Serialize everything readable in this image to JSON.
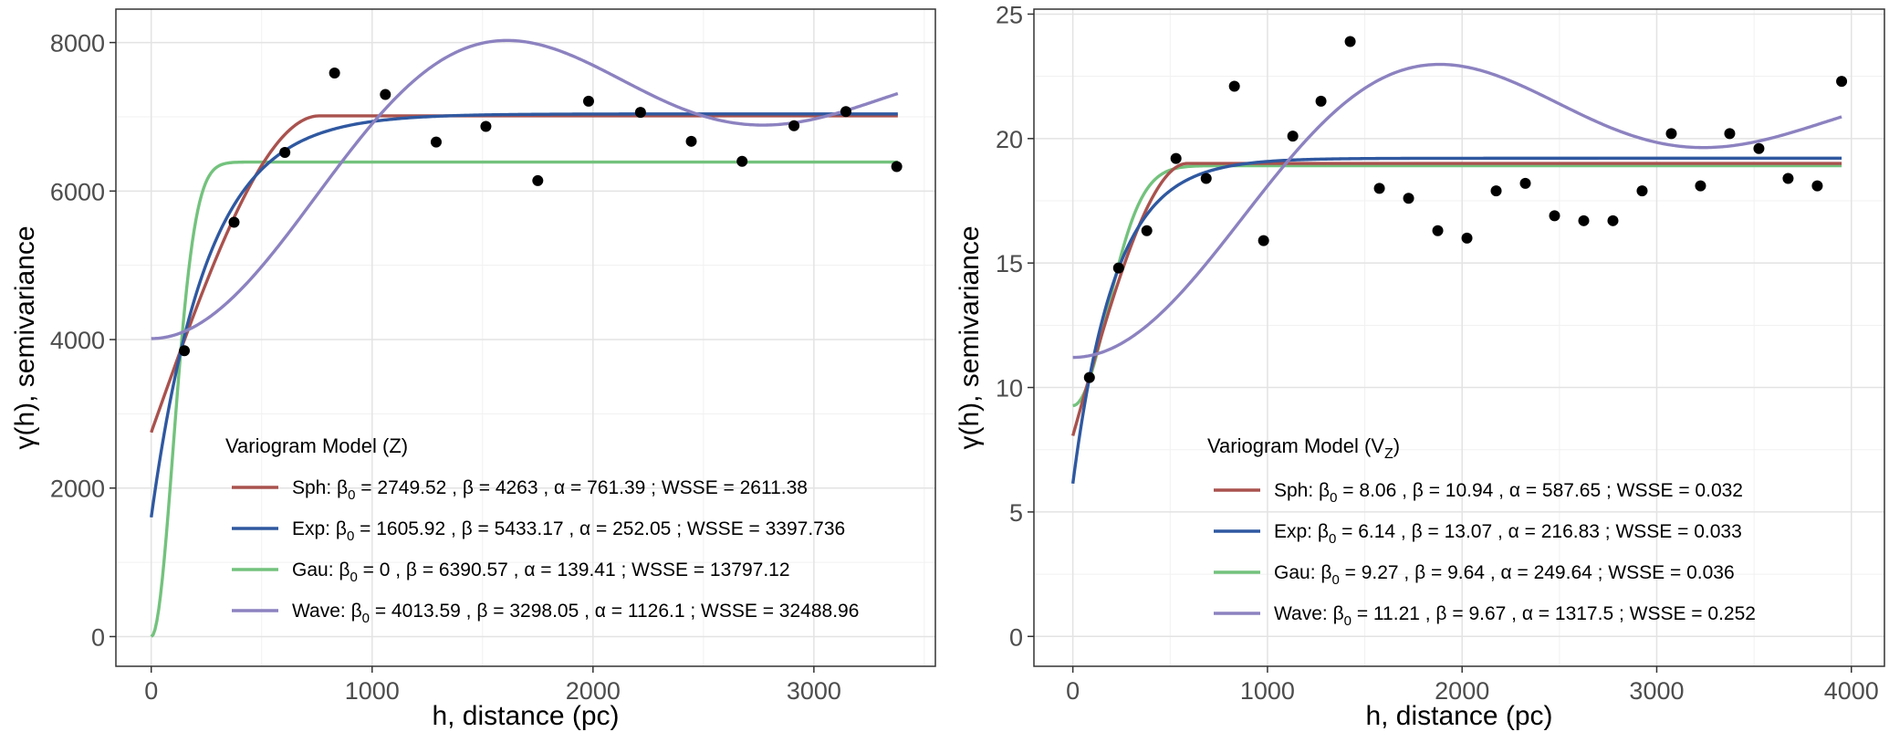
{
  "colors": {
    "sph": "#a9524e",
    "exp": "#2f58a0",
    "gau": "#73c27d",
    "wave": "#8c82c0",
    "points": "#000000",
    "grid_major": "#e3e3e3",
    "grid_minor": "#f1f1f1",
    "panel_border": "#333333"
  },
  "chart_data": [
    {
      "type": "scatter",
      "title": "",
      "xlabel": "h, distance (pc)",
      "ylabel": "γ(h), semivariance",
      "xlim": [
        -160,
        3550
      ],
      "ylim": [
        -400,
        8450
      ],
      "xticks": [
        0,
        1000,
        2000,
        3000
      ],
      "yticks": [
        0,
        2000,
        4000,
        6000,
        8000
      ],
      "xtick_labels": [
        "0",
        "1000",
        "2000",
        "3000"
      ],
      "ytick_labels": [
        "0",
        "2000",
        "4000",
        "6000",
        "8000"
      ],
      "legend": {
        "title": "Variogram Model (Z)",
        "placement": "bottom-center",
        "entries": [
          {
            "key": "sph",
            "model": "Sph:",
            "b0": "2749.52",
            "b": "4263",
            "a": "761.39",
            "wsse": "2611.38"
          },
          {
            "key": "exp",
            "model": "Exp:",
            "b0": "1605.92",
            "b": "5433.17",
            "a": "252.05",
            "wsse": "3397.736"
          },
          {
            "key": "gau",
            "model": "Gau:",
            "b0": "0",
            "b": "6390.57",
            "a": "139.41",
            "wsse": "13797.12"
          },
          {
            "key": "wave",
            "model": "Wave:",
            "b0": "4013.59",
            "b": "3298.05",
            "a": "1126.1",
            "wsse": "32488.96"
          }
        ]
      },
      "models": [
        {
          "key": "sph",
          "name": "Sph",
          "type": "spherical",
          "nugget": 2749.52,
          "psill": 4263,
          "range": 761.39
        },
        {
          "key": "exp",
          "name": "Exp",
          "type": "exponential",
          "nugget": 1605.92,
          "psill": 5433.17,
          "range": 252.05
        },
        {
          "key": "gau",
          "name": "Gau",
          "type": "gaussian",
          "nugget": 0,
          "psill": 6390.57,
          "range": 139.41
        },
        {
          "key": "wave",
          "name": "Wave",
          "type": "wave",
          "nugget": 4013.59,
          "psill": 3298.05,
          "range": 1126.1
        }
      ],
      "x_max": 3380,
      "points": {
        "x": [
          150,
          375,
          605,
          830,
          1060,
          1290,
          1515,
          1750,
          1980,
          2215,
          2445,
          2675,
          2910,
          3145,
          3375
        ],
        "y": [
          3850,
          5580,
          6520,
          7590,
          7300,
          6660,
          6870,
          6140,
          7210,
          7060,
          6670,
          6400,
          6880,
          7070,
          6330
        ]
      }
    },
    {
      "type": "scatter",
      "title": "",
      "xlabel": "h, distance (pc)",
      "ylabel": "γ(h), semivariance",
      "xlim": [
        -200,
        4170
      ],
      "ylim": [
        -1.2,
        25.2
      ],
      "xticks": [
        0,
        1000,
        2000,
        3000,
        4000
      ],
      "yticks": [
        0,
        5,
        10,
        15,
        20,
        25
      ],
      "xtick_labels": [
        "0",
        "1000",
        "2000",
        "3000",
        "4000"
      ],
      "ytick_labels": [
        "0",
        "5",
        "10",
        "15",
        "20",
        "25"
      ],
      "legend": {
        "title": "Variogram Model (V",
        "title_sub": "Z",
        "title_end": ")",
        "placement": "bottom-center",
        "entries": [
          {
            "key": "sph",
            "model": "Sph:",
            "b0": "8.06",
            "b": "10.94",
            "a": "587.65",
            "wsse": "0.032"
          },
          {
            "key": "exp",
            "model": "Exp:",
            "b0": "6.14",
            "b": "13.07",
            "a": "216.83",
            "wsse": "0.033"
          },
          {
            "key": "gau",
            "model": "Gau:",
            "b0": "9.27",
            "b": "9.64",
            "a": "249.64",
            "wsse": "0.036"
          },
          {
            "key": "wave",
            "model": "Wave:",
            "b0": "11.21",
            "b": "9.67",
            "a": "1317.5",
            "wsse": "0.252"
          }
        ]
      },
      "models": [
        {
          "key": "sph",
          "name": "Sph",
          "type": "spherical",
          "nugget": 8.06,
          "psill": 10.94,
          "range": 587.65
        },
        {
          "key": "exp",
          "name": "Exp",
          "type": "exponential",
          "nugget": 6.14,
          "psill": 13.07,
          "range": 216.83
        },
        {
          "key": "gau",
          "name": "Gau",
          "type": "gaussian",
          "nugget": 9.27,
          "psill": 9.64,
          "range": 249.64
        },
        {
          "key": "wave",
          "name": "Wave",
          "type": "wave",
          "nugget": 11.21,
          "psill": 9.67,
          "range": 1317.5
        }
      ],
      "x_max": 3950,
      "points": {
        "x": [
          85,
          235,
          380,
          530,
          685,
          830,
          980,
          1130,
          1275,
          1425,
          1575,
          1725,
          1875,
          2025,
          2175,
          2325,
          2475,
          2625,
          2775,
          2925,
          3075,
          3225,
          3375,
          3525,
          3675,
          3825,
          3950
        ],
        "y": [
          10.4,
          14.8,
          16.3,
          19.2,
          18.4,
          22.1,
          15.9,
          20.1,
          21.5,
          23.9,
          18.0,
          17.6,
          16.3,
          16.0,
          17.9,
          18.2,
          16.9,
          16.7,
          16.7,
          17.9,
          20.2,
          18.1,
          20.2,
          19.6,
          18.4,
          18.1,
          22.3
        ]
      }
    }
  ]
}
